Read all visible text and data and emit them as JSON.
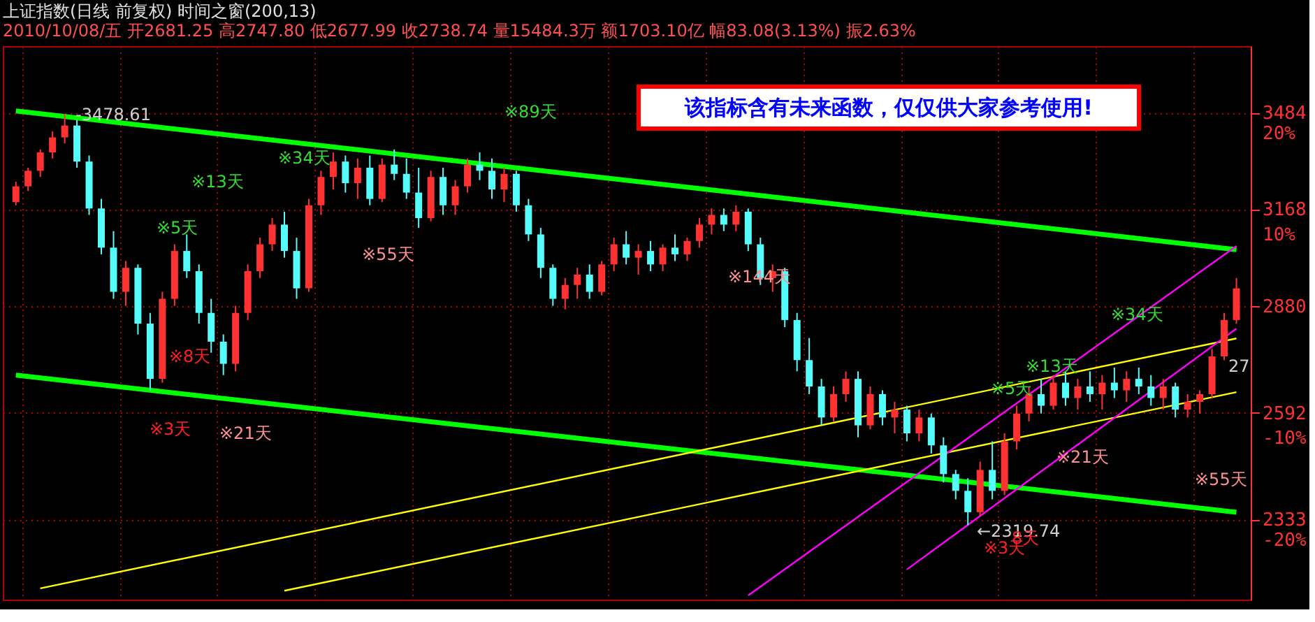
{
  "chart_data": {
    "type": "candlestick",
    "title": "上证指数(日线 前复权) 时间之窗(200,13)",
    "subtitle": "2010/10/08/五 开2681.25 高2747.80 低2677.99 收2738.74 量15484.3万 额1703.10亿 幅83.08(3.13%) 振2.63%",
    "categories": [
      null,
      null,
      null,
      null,
      null,
      null,
      null,
      null,
      null,
      null,
      null,
      null,
      null,
      null,
      null,
      null,
      null,
      null,
      null,
      null,
      null,
      null,
      null,
      null,
      null,
      null,
      null,
      null,
      null,
      null,
      null,
      null,
      null,
      null,
      null,
      null,
      null,
      null,
      null,
      null,
      null,
      null,
      null,
      null,
      null,
      null,
      null,
      null,
      null,
      null,
      null,
      null,
      null,
      null,
      null,
      null,
      null,
      null,
      null,
      null,
      null,
      null,
      null,
      null,
      null,
      null,
      null,
      null,
      null,
      null,
      null,
      null,
      null,
      null,
      null,
      null,
      null,
      null,
      null,
      null,
      null,
      null,
      null,
      null,
      null,
      null,
      null,
      null,
      null,
      null,
      null,
      null,
      null,
      null,
      null,
      null,
      null,
      null,
      null,
      null,
      null
    ],
    "ohlc": [
      [
        3190,
        3255,
        3180,
        3240
      ],
      [
        3240,
        3300,
        3225,
        3290
      ],
      [
        3290,
        3360,
        3270,
        3350
      ],
      [
        3350,
        3420,
        3330,
        3400
      ],
      [
        3400,
        3479,
        3380,
        3440
      ],
      [
        3440,
        3460,
        3300,
        3320
      ],
      [
        3320,
        3340,
        3150,
        3170
      ],
      [
        3170,
        3200,
        3030,
        3050
      ],
      [
        3050,
        3100,
        2900,
        2920
      ],
      [
        2920,
        3010,
        2880,
        2990
      ],
      [
        2990,
        3000,
        2800,
        2830
      ],
      [
        2830,
        2860,
        2650,
        2680
      ],
      [
        2680,
        2920,
        2670,
        2900
      ],
      [
        2900,
        3060,
        2880,
        3040
      ],
      [
        3040,
        3090,
        2960,
        2980
      ],
      [
        2980,
        3000,
        2830,
        2860
      ],
      [
        2860,
        2900,
        2750,
        2780
      ],
      [
        2780,
        2800,
        2690,
        2720
      ],
      [
        2720,
        2880,
        2700,
        2860
      ],
      [
        2860,
        3000,
        2840,
        2980
      ],
      [
        2980,
        3080,
        2960,
        3060
      ],
      [
        3060,
        3140,
        3040,
        3120
      ],
      [
        3120,
        3160,
        3020,
        3040
      ],
      [
        3040,
        3080,
        2900,
        2930
      ],
      [
        2930,
        3200,
        2920,
        3180
      ],
      [
        3180,
        3290,
        3150,
        3270
      ],
      [
        3270,
        3350,
        3230,
        3320
      ],
      [
        3320,
        3340,
        3220,
        3250
      ],
      [
        3250,
        3330,
        3200,
        3300
      ],
      [
        3300,
        3340,
        3180,
        3200
      ],
      [
        3200,
        3330,
        3190,
        3310
      ],
      [
        3310,
        3360,
        3260,
        3280
      ],
      [
        3280,
        3330,
        3200,
        3220
      ],
      [
        3220,
        3300,
        3110,
        3140
      ],
      [
        3140,
        3290,
        3130,
        3270
      ],
      [
        3270,
        3300,
        3150,
        3180
      ],
      [
        3180,
        3260,
        3150,
        3240
      ],
      [
        3240,
        3330,
        3220,
        3310
      ],
      [
        3310,
        3350,
        3260,
        3290
      ],
      [
        3290,
        3330,
        3200,
        3230
      ],
      [
        3230,
        3300,
        3190,
        3280
      ],
      [
        3280,
        3290,
        3160,
        3180
      ],
      [
        3180,
        3200,
        3070,
        3090
      ],
      [
        3090,
        3110,
        2960,
        2990
      ],
      [
        2990,
        3000,
        2880,
        2900
      ],
      [
        2900,
        2960,
        2870,
        2940
      ],
      [
        2940,
        2990,
        2900,
        2970
      ],
      [
        2970,
        3000,
        2900,
        2920
      ],
      [
        2920,
        3010,
        2910,
        3000
      ],
      [
        3000,
        3080,
        2980,
        3060
      ],
      [
        3060,
        3100,
        3000,
        3020
      ],
      [
        3020,
        3060,
        2970,
        3040
      ],
      [
        3040,
        3070,
        2980,
        3000
      ],
      [
        3000,
        3060,
        2980,
        3050
      ],
      [
        3050,
        3090,
        3010,
        3030
      ],
      [
        3030,
        3080,
        3010,
        3070
      ],
      [
        3070,
        3140,
        3050,
        3120
      ],
      [
        3120,
        3170,
        3090,
        3150
      ],
      [
        3150,
        3170,
        3100,
        3120
      ],
      [
        3120,
        3180,
        3100,
        3160
      ],
      [
        3160,
        3170,
        3040,
        3060
      ],
      [
        3060,
        3080,
        2940,
        2960
      ],
      [
        2960,
        3000,
        2920,
        2980
      ],
      [
        2980,
        2990,
        2820,
        2840
      ],
      [
        2840,
        2860,
        2700,
        2730
      ],
      [
        2730,
        2790,
        2640,
        2660
      ],
      [
        2660,
        2680,
        2560,
        2580
      ],
      [
        2580,
        2660,
        2570,
        2640
      ],
      [
        2640,
        2700,
        2620,
        2680
      ],
      [
        2680,
        2700,
        2530,
        2560
      ],
      [
        2560,
        2660,
        2550,
        2640
      ],
      [
        2640,
        2650,
        2560,
        2580
      ],
      [
        2580,
        2620,
        2540,
        2600
      ],
      [
        2600,
        2610,
        2520,
        2540
      ],
      [
        2540,
        2600,
        2520,
        2580
      ],
      [
        2580,
        2590,
        2490,
        2510
      ],
      [
        2510,
        2530,
        2420,
        2440
      ],
      [
        2440,
        2450,
        2380,
        2400
      ],
      [
        2400,
        2430,
        2320,
        2350
      ],
      [
        2350,
        2470,
        2340,
        2450
      ],
      [
        2450,
        2520,
        2380,
        2400
      ],
      [
        2400,
        2540,
        2390,
        2520
      ],
      [
        2520,
        2610,
        2500,
        2590
      ],
      [
        2590,
        2660,
        2570,
        2640
      ],
      [
        2640,
        2680,
        2590,
        2610
      ],
      [
        2610,
        2690,
        2600,
        2670
      ],
      [
        2670,
        2700,
        2610,
        2630
      ],
      [
        2630,
        2680,
        2600,
        2660
      ],
      [
        2660,
        2700,
        2620,
        2640
      ],
      [
        2640,
        2690,
        2600,
        2670
      ],
      [
        2670,
        2710,
        2630,
        2650
      ],
      [
        2650,
        2700,
        2620,
        2680
      ],
      [
        2680,
        2710,
        2640,
        2660
      ],
      [
        2660,
        2690,
        2610,
        2630
      ],
      [
        2630,
        2680,
        2600,
        2660
      ],
      [
        2660,
        2670,
        2580,
        2600
      ],
      [
        2600,
        2640,
        2580,
        2620
      ],
      [
        2620,
        2650,
        2590,
        2640
      ],
      [
        2640,
        2760,
        2630,
        2740
      ],
      [
        2740,
        2860,
        2730,
        2840
      ],
      [
        2840,
        2960,
        2830,
        2930
      ]
    ],
    "series": [
      {
        "type": "line",
        "color": "#00ff00",
        "values": [
          3490,
          null,
          null,
          null,
          null,
          null,
          null,
          null,
          null,
          null,
          null,
          null,
          null,
          null,
          null,
          null,
          null,
          null,
          null,
          null,
          null,
          null,
          null,
          null,
          null,
          null,
          null,
          null,
          null,
          null,
          null,
          null,
          null,
          null,
          null,
          null,
          null,
          null,
          null,
          null,
          null,
          null,
          null,
          null,
          null,
          null,
          null,
          null,
          null,
          null,
          null,
          null,
          null,
          null,
          null,
          null,
          null,
          null,
          null,
          null,
          null,
          null,
          null,
          null,
          null,
          null,
          null,
          null,
          null,
          null,
          null,
          null,
          null,
          null,
          null,
          null,
          null,
          null,
          null,
          null,
          null,
          null,
          null,
          null,
          null,
          null,
          null,
          null,
          null,
          null,
          null,
          null,
          null,
          null,
          null,
          null,
          null,
          null,
          null,
          null,
          3044
        ]
      },
      {
        "type": "line",
        "color": "#00ff00",
        "values": [
          2690,
          null,
          null,
          null,
          null,
          null,
          null,
          null,
          null,
          null,
          null,
          null,
          null,
          null,
          null,
          null,
          null,
          null,
          null,
          null,
          null,
          null,
          null,
          null,
          null,
          null,
          null,
          null,
          null,
          null,
          null,
          null,
          null,
          null,
          null,
          null,
          null,
          null,
          null,
          null,
          null,
          null,
          null,
          null,
          null,
          null,
          null,
          null,
          null,
          null,
          null,
          null,
          null,
          null,
          null,
          null,
          null,
          null,
          null,
          null,
          null,
          null,
          null,
          null,
          null,
          null,
          null,
          null,
          null,
          null,
          null,
          null,
          null,
          null,
          null,
          null,
          null,
          null,
          null,
          null,
          null,
          null,
          null,
          null,
          null,
          null,
          null,
          null,
          null,
          null,
          null,
          null,
          null,
          null,
          null,
          null,
          null,
          null,
          null,
          null,
          2350
        ]
      },
      {
        "type": "line",
        "color": "#ffff00",
        "values": [
          null,
          null,
          2180,
          null,
          null,
          null,
          null,
          null,
          null,
          null,
          null,
          null,
          null,
          null,
          null,
          null,
          null,
          null,
          null,
          null,
          null,
          null,
          null,
          null,
          null,
          null,
          null,
          null,
          null,
          null,
          null,
          null,
          null,
          null,
          null,
          null,
          null,
          null,
          null,
          null,
          null,
          null,
          null,
          null,
          null,
          null,
          null,
          null,
          null,
          null,
          null,
          null,
          null,
          null,
          null,
          null,
          null,
          null,
          null,
          null,
          null,
          null,
          null,
          null,
          null,
          null,
          null,
          null,
          null,
          null,
          null,
          null,
          null,
          null,
          null,
          null,
          null,
          null,
          null,
          null,
          null,
          null,
          null,
          null,
          null,
          null,
          null,
          null,
          null,
          null,
          null,
          null,
          null,
          null,
          null,
          null,
          null,
          null,
          null,
          null,
          2789
        ]
      },
      {
        "type": "line",
        "color": "#ffff00",
        "values": [
          null,
          null,
          null,
          null,
          null,
          null,
          null,
          null,
          null,
          null,
          null,
          null,
          null,
          null,
          null,
          null,
          null,
          null,
          null,
          null,
          null,
          null,
          2175,
          null,
          null,
          null,
          null,
          null,
          null,
          null,
          null,
          null,
          null,
          null,
          null,
          null,
          null,
          null,
          null,
          null,
          null,
          null,
          null,
          null,
          null,
          null,
          null,
          null,
          null,
          null,
          null,
          null,
          null,
          null,
          null,
          null,
          null,
          null,
          null,
          null,
          null,
          null,
          null,
          null,
          null,
          null,
          null,
          null,
          null,
          null,
          null,
          null,
          null,
          null,
          null,
          null,
          null,
          null,
          null,
          null,
          null,
          null,
          null,
          null,
          null,
          null,
          null,
          null,
          null,
          null,
          null,
          null,
          null,
          null,
          null,
          null,
          null,
          null,
          null,
          null,
          2645
        ]
      },
      {
        "type": "line",
        "color": "#ff00ff",
        "values": [
          null,
          null,
          null,
          null,
          null,
          null,
          null,
          null,
          null,
          null,
          null,
          null,
          null,
          null,
          null,
          null,
          null,
          null,
          null,
          null,
          null,
          null,
          null,
          null,
          null,
          null,
          null,
          null,
          null,
          null,
          null,
          null,
          null,
          null,
          null,
          null,
          null,
          null,
          null,
          null,
          null,
          null,
          null,
          null,
          null,
          null,
          null,
          null,
          null,
          null,
          null,
          null,
          null,
          null,
          null,
          null,
          null,
          null,
          null,
          null,
          2165,
          null,
          null,
          null,
          null,
          null,
          null,
          null,
          null,
          null,
          null,
          null,
          null,
          null,
          null,
          null,
          null,
          null,
          null,
          null,
          null,
          null,
          null,
          null,
          null,
          null,
          null,
          null,
          null,
          null,
          null,
          null,
          null,
          null,
          null,
          null,
          null,
          null,
          null,
          null,
          3055
        ]
      },
      {
        "type": "line",
        "color": "#ff00ff",
        "values": [
          null,
          null,
          null,
          null,
          null,
          null,
          null,
          null,
          null,
          null,
          null,
          null,
          null,
          null,
          null,
          null,
          null,
          null,
          null,
          null,
          null,
          null,
          null,
          null,
          null,
          null,
          null,
          null,
          null,
          null,
          null,
          null,
          null,
          null,
          null,
          null,
          null,
          null,
          null,
          null,
          null,
          null,
          null,
          null,
          null,
          null,
          null,
          null,
          null,
          null,
          null,
          null,
          null,
          null,
          null,
          null,
          null,
          null,
          null,
          null,
          null,
          null,
          null,
          null,
          null,
          null,
          null,
          null,
          null,
          null,
          null,
          null,
          null,
          2221,
          null,
          null,
          null,
          null,
          null,
          null,
          null,
          null,
          null,
          null,
          null,
          null,
          null,
          null,
          null,
          null,
          null,
          null,
          null,
          null,
          null,
          null,
          null,
          null,
          null,
          null,
          2816
        ]
      }
    ],
    "log": "y",
    "ylim": [
      2156,
      3720
    ],
    "yticks": [
      3484,
      3168,
      2880,
      2592,
      2333
    ],
    "y2lim": [
      -25.91,
      28.49
    ],
    "y2ticks": [
      {
        "value": 20,
        "label": "20%"
      },
      {
        "value": 10,
        "label": "10%"
      },
      {
        "value": -10,
        "label": "-10%"
      },
      {
        "value": -20,
        "label": "-20%"
      }
    ],
    "tick_labels": "y",
    "grid": true,
    "annotations": [
      "该指标含有未来函数，仅仅供大家参考使用!",
      "-3478.61",
      "←2319.74",
      "※5天",
      "※13天",
      "※34天",
      "※89天",
      "※55天",
      "※8天",
      "※3天",
      "※21天",
      "※144天",
      "※5天",
      "※13天",
      "※34天",
      "※21天",
      "※55天",
      "※3天",
      "8天",
      "27"
    ]
  }
}
